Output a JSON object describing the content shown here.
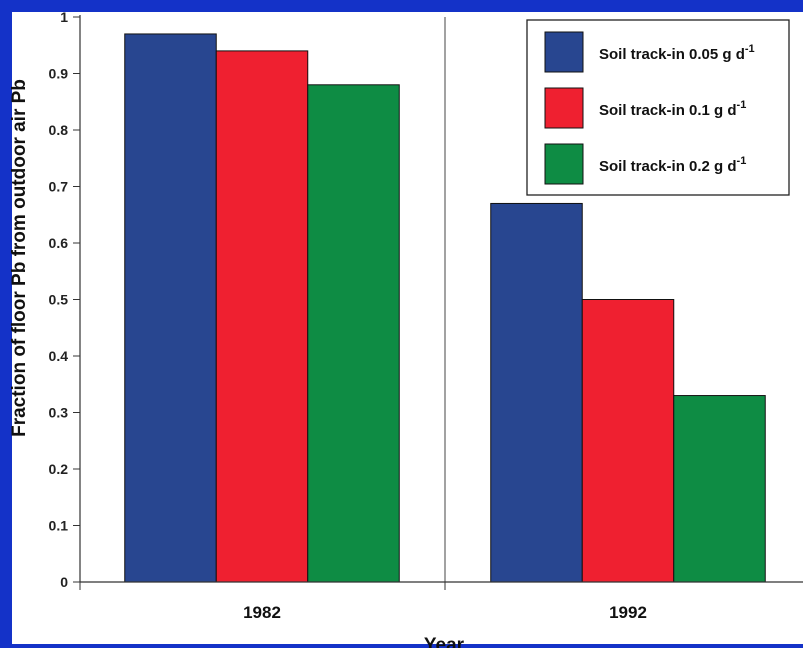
{
  "chart_data": {
    "type": "bar",
    "categories": [
      "1982",
      "1992"
    ],
    "series": [
      {
        "name": "Soil track-in 0.05 g d",
        "name_sup": "-1",
        "color": "#284690",
        "values": [
          0.97,
          0.67
        ]
      },
      {
        "name": "Soil track-in 0.1 g d",
        "name_sup": "-1",
        "color": "#ef2030",
        "values": [
          0.94,
          0.5
        ]
      },
      {
        "name": "Soil track-in 0.2 g d",
        "name_sup": "-1",
        "color": "#0e8c44",
        "values": [
          0.88,
          0.33
        ]
      }
    ],
    "xlabel": "Year",
    "ylabel": "Fraction of floor Pb from outdoor air Pb",
    "ylim": [
      0,
      1
    ],
    "yticks": [
      "0",
      "0.1",
      "0.2",
      "0.3",
      "0.4",
      "0.5",
      "0.6",
      "0.7",
      "0.8",
      "0.9",
      "1"
    ],
    "grid": "vertical divider between categories",
    "legend_position": "top-right"
  }
}
